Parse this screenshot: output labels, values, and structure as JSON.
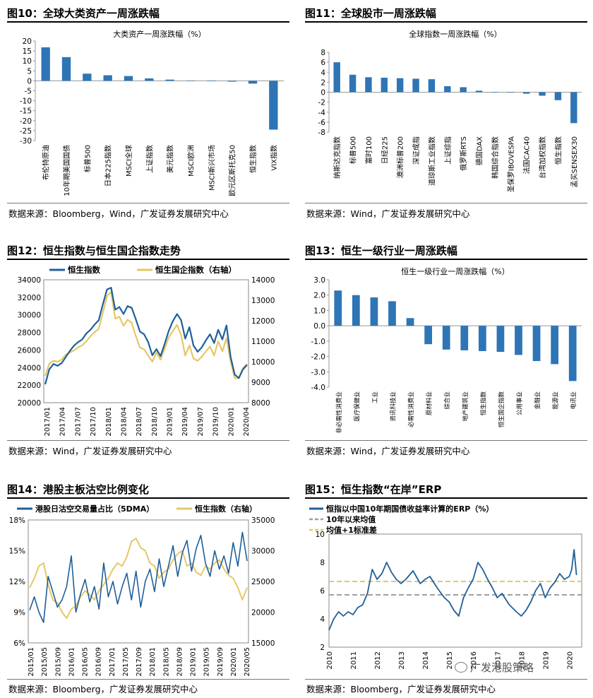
{
  "colors": {
    "blue": "#1F5F99",
    "bar": "#2E75B6",
    "gold": "#E6C766",
    "gray": "#A0A0A0"
  },
  "panels": [
    {
      "title": "图10：全球大类资产一周涨跌幅",
      "source": "数据来源：Bloomberg，Wind，广发证券发展研究中心"
    },
    {
      "title": "图11：全球股市一周涨跌幅",
      "source": "数据来源：Wind，广发证券发展研究中心"
    },
    {
      "title": "图12：恒生指数与恒生国企指数走势",
      "source": "数据来源：Wind，广发证券发展研究中心"
    },
    {
      "title": "图13：恒生一级行业一周涨跌幅",
      "source": "数据来源：Wind，广发证券发展研究中心"
    },
    {
      "title": "图14：港股主板沽空比例变化",
      "source": "数据来源：Bloomberg，广发证券发展研究中心"
    },
    {
      "title": "图15：恒生指数“在岸”ERP",
      "source": "数据来源：Bloomberg，广发证券发展研究中心"
    }
  ],
  "watermark": "广发港股策略",
  "chart_data": [
    {
      "type": "bar",
      "title": "大类资产一周涨跌幅（%）",
      "categories": [
        "布伦特原油",
        "10年期美国国债",
        "标普500",
        "日本225指数",
        "MSCI全球",
        "上证指数",
        "美元指数",
        "MSCI欧洲",
        "MSCI新兴市场",
        "欧元区斯托克50",
        "恒生指数",
        "VIX指数"
      ],
      "values": [
        16.8,
        11.9,
        3.6,
        2.8,
        2.4,
        1.2,
        0.6,
        0.1,
        -0.2,
        -0.4,
        -1.4,
        -24.5
      ],
      "ylim": [
        -30,
        20
      ],
      "yticks": [
        20,
        15,
        10,
        5,
        0,
        -5,
        -10,
        -15,
        -20,
        -25,
        -30
      ]
    },
    {
      "type": "bar",
      "title": "全球指数一周涨跌幅（%）",
      "categories": [
        "纳斯达克指数",
        "标普500",
        "富时100",
        "日经225",
        "澳洲标普200",
        "深证成指",
        "道琼斯工业指数",
        "上证综指",
        "俄罗斯RTS",
        "德国DAX",
        "韩国综合指数",
        "圣保罗IBOVESPA",
        "法国CAC40",
        "台湾加权指数",
        "恒生指数",
        "孟买SENSEX30"
      ],
      "values": [
        6.0,
        3.5,
        3.0,
        2.9,
        2.8,
        2.7,
        2.6,
        1.2,
        1.0,
        0.3,
        0.0,
        -0.1,
        -0.3,
        -0.7,
        -1.6,
        -6.2
      ],
      "ylim": [
        -8,
        8
      ],
      "yticks": [
        8,
        6,
        4,
        2,
        0,
        -2,
        -4,
        -6,
        -8
      ]
    },
    {
      "type": "line",
      "title": "",
      "series": [
        {
          "name": "恒生指数",
          "axis": "left"
        },
        {
          "name": "恒生国企指数（右轴）",
          "axis": "right"
        }
      ],
      "x": [
        "2017/01",
        "2017/04",
        "2017/07",
        "2017/10",
        "2018/01",
        "2018/04",
        "2018/07",
        "2018/10",
        "2019/01",
        "2019/04",
        "2019/07",
        "2019/10",
        "2020/01",
        "2020/04"
      ],
      "left_ylim": [
        20000,
        34000
      ],
      "left_yticks": [
        34000,
        32000,
        30000,
        28000,
        26000,
        24000,
        22000,
        20000
      ],
      "right_ylim": [
        8000,
        14000
      ],
      "right_yticks": [
        14000,
        13000,
        12000,
        11000,
        10000,
        9000,
        8000
      ],
      "hsi_points": [
        [
          0,
          22100
        ],
        [
          1,
          23800
        ],
        [
          2,
          24400
        ],
        [
          3,
          24200
        ],
        [
          4,
          24500
        ],
        [
          5,
          25200
        ],
        [
          6,
          25900
        ],
        [
          7,
          26500
        ],
        [
          8,
          26900
        ],
        [
          9,
          27200
        ],
        [
          10,
          27900
        ],
        [
          11,
          28300
        ],
        [
          12,
          28900
        ],
        [
          13,
          29400
        ],
        [
          14,
          31200
        ],
        [
          15,
          32900
        ],
        [
          16,
          33100
        ],
        [
          17,
          30600
        ],
        [
          18,
          30900
        ],
        [
          19,
          30100
        ],
        [
          20,
          31000
        ],
        [
          21,
          30800
        ],
        [
          22,
          29500
        ],
        [
          23,
          28100
        ],
        [
          24,
          27800
        ],
        [
          25,
          26900
        ],
        [
          26,
          25400
        ],
        [
          27,
          26100
        ],
        [
          28,
          25300
        ],
        [
          29,
          26700
        ],
        [
          30,
          28200
        ],
        [
          31,
          29300
        ],
        [
          32,
          30100
        ],
        [
          33,
          29400
        ],
        [
          34,
          27300
        ],
        [
          35,
          28600
        ],
        [
          36,
          26500
        ],
        [
          37,
          25800
        ],
        [
          38,
          26300
        ],
        [
          39,
          27100
        ],
        [
          40,
          27800
        ],
        [
          41,
          26800
        ],
        [
          42,
          28300
        ],
        [
          43,
          27200
        ],
        [
          44,
          28800
        ],
        [
          45,
          25200
        ],
        [
          46,
          23200
        ],
        [
          47,
          22800
        ],
        [
          48,
          23800
        ],
        [
          49,
          24300
        ]
      ],
      "hscei_points": [
        [
          0,
          9300
        ],
        [
          1,
          9900
        ],
        [
          2,
          10050
        ],
        [
          3,
          10000
        ],
        [
          4,
          10100
        ],
        [
          5,
          10350
        ],
        [
          6,
          10450
        ],
        [
          7,
          10550
        ],
        [
          8,
          10700
        ],
        [
          9,
          10800
        ],
        [
          10,
          11000
        ],
        [
          11,
          11250
        ],
        [
          12,
          11450
        ],
        [
          13,
          11600
        ],
        [
          14,
          12400
        ],
        [
          15,
          13200
        ],
        [
          16,
          13400
        ],
        [
          17,
          12100
        ],
        [
          18,
          12200
        ],
        [
          19,
          11750
        ],
        [
          20,
          12050
        ],
        [
          21,
          11900
        ],
        [
          22,
          11250
        ],
        [
          23,
          10700
        ],
        [
          24,
          10600
        ],
        [
          25,
          10300
        ],
        [
          26,
          10000
        ],
        [
          27,
          10450
        ],
        [
          28,
          10100
        ],
        [
          29,
          10650
        ],
        [
          30,
          11200
        ],
        [
          31,
          11500
        ],
        [
          32,
          11800
        ],
        [
          33,
          11300
        ],
        [
          34,
          10300
        ],
        [
          35,
          10800
        ],
        [
          36,
          10150
        ],
        [
          37,
          10050
        ],
        [
          38,
          10250
        ],
        [
          39,
          10500
        ],
        [
          40,
          10750
        ],
        [
          41,
          10300
        ],
        [
          42,
          11000
        ],
        [
          43,
          10500
        ],
        [
          44,
          11150
        ],
        [
          45,
          10000
        ],
        [
          46,
          9200
        ],
        [
          47,
          9200
        ],
        [
          48,
          9700
        ],
        [
          49,
          9900
        ]
      ]
    },
    {
      "type": "bar",
      "title": "恒生一级行业一周涨跌幅（%）",
      "categories": [
        "非必需性消费业",
        "医疗保健业",
        "工业",
        "资讯科技业",
        "必需性消费业",
        "原材料业",
        "综合业",
        "地产建筑业",
        "恒生指数",
        "恒生国企指数",
        "公用事业",
        "金融业",
        "能源业",
        "电讯业"
      ],
      "values": [
        2.3,
        2.0,
        1.85,
        1.6,
        0.5,
        -1.2,
        -1.55,
        -1.6,
        -1.65,
        -1.7,
        -1.9,
        -2.3,
        -2.5,
        -3.6
      ],
      "ylim": [
        -4,
        3
      ],
      "yticks": [
        3.0,
        2.0,
        1.0,
        0.0,
        -1.0,
        -2.0,
        -3.0,
        -4.0
      ]
    },
    {
      "type": "line",
      "title": "",
      "series": [
        {
          "name": "港股日沽空交易量占比（5DMA）",
          "axis": "left"
        },
        {
          "name": "恒生指数（右轴）",
          "axis": "right"
        }
      ],
      "x": [
        "2015/01",
        "2015/05",
        "2015/09",
        "2016/01",
        "2016/05",
        "2016/09",
        "2017/01",
        "2017/05",
        "2017/09",
        "2018/01",
        "2018/05",
        "2018/09",
        "2019/01",
        "2019/05",
        "2019/09",
        "2020/01",
        "2020/05"
      ],
      "left_ylim": [
        6,
        18
      ],
      "left_yticks": [
        "18%",
        "15%",
        "12%",
        "9%",
        "6%"
      ],
      "right_ylim": [
        15000,
        35000
      ],
      "right_yticks": [
        35000,
        30000,
        25000,
        20000,
        15000
      ],
      "short_points": [
        [
          0,
          9.2
        ],
        [
          1,
          10.5
        ],
        [
          2,
          9.0
        ],
        [
          3,
          8.0
        ],
        [
          4,
          12.5
        ],
        [
          5,
          11.0
        ],
        [
          6,
          9.5
        ],
        [
          7,
          10.2
        ],
        [
          8,
          11.5
        ],
        [
          9,
          14.5
        ],
        [
          10,
          9.0
        ],
        [
          11,
          10.8
        ],
        [
          12,
          12.2
        ],
        [
          13,
          10.0
        ],
        [
          14,
          11.5
        ],
        [
          15,
          9.3
        ],
        [
          16,
          13.8
        ],
        [
          17,
          10.5
        ],
        [
          18,
          12.0
        ],
        [
          19,
          9.8
        ],
        [
          20,
          11.5
        ],
        [
          21,
          12.8
        ],
        [
          22,
          10.2
        ],
        [
          23,
          13.0
        ],
        [
          24,
          9.5
        ],
        [
          25,
          12.0
        ],
        [
          26,
          13.2
        ],
        [
          27,
          11.0
        ],
        [
          28,
          14.2
        ],
        [
          29,
          11.5
        ],
        [
          30,
          13.5
        ],
        [
          31,
          15.5
        ],
        [
          32,
          12.5
        ],
        [
          33,
          14.8
        ],
        [
          34,
          16.0
        ],
        [
          35,
          13.0
        ],
        [
          36,
          15.2
        ],
        [
          37,
          16.5
        ],
        [
          38,
          13.8
        ],
        [
          39,
          12.5
        ],
        [
          40,
          15.0
        ],
        [
          41,
          13.2
        ],
        [
          42,
          14.5
        ],
        [
          43,
          12.8
        ],
        [
          44,
          15.8
        ],
        [
          45,
          13.5
        ],
        [
          46,
          16.8
        ],
        [
          47,
          14.0
        ]
      ],
      "hsi_points": [
        [
          0,
          24000
        ],
        [
          1,
          25500
        ],
        [
          2,
          27500
        ],
        [
          3,
          28000
        ],
        [
          4,
          24500
        ],
        [
          5,
          22000
        ],
        [
          6,
          21500
        ],
        [
          7,
          20000
        ],
        [
          8,
          19000
        ],
        [
          9,
          20500
        ],
        [
          10,
          21000
        ],
        [
          11,
          22500
        ],
        [
          12,
          23500
        ],
        [
          13,
          22800
        ],
        [
          14,
          22000
        ],
        [
          15,
          23500
        ],
        [
          16,
          24500
        ],
        [
          17,
          25500
        ],
        [
          18,
          27000
        ],
        [
          19,
          28000
        ],
        [
          20,
          27500
        ],
        [
          21,
          29000
        ],
        [
          22,
          31500
        ],
        [
          23,
          32000
        ],
        [
          24,
          30500
        ],
        [
          25,
          30000
        ],
        [
          26,
          28000
        ],
        [
          27,
          27500
        ],
        [
          28,
          25500
        ],
        [
          29,
          26500
        ],
        [
          30,
          27000
        ],
        [
          31,
          28500
        ],
        [
          32,
          29500
        ],
        [
          33,
          30000
        ],
        [
          34,
          27500
        ],
        [
          35,
          28000
        ],
        [
          36,
          26500
        ],
        [
          37,
          26000
        ],
        [
          38,
          27500
        ],
        [
          39,
          27000
        ],
        [
          40,
          28000
        ],
        [
          41,
          28500
        ],
        [
          42,
          27000
        ],
        [
          43,
          26000
        ],
        [
          44,
          25500
        ],
        [
          45,
          24000
        ],
        [
          46,
          22000
        ],
        [
          47,
          24000
        ]
      ]
    },
    {
      "type": "line",
      "title": "",
      "series": [
        {
          "name": "恒指以中国10年期国债收益率计算的ERP（%）"
        },
        {
          "name": "10年以来均值"
        },
        {
          "name": "均值+1标准差"
        }
      ],
      "x": [
        "2010",
        "2011",
        "2012",
        "2013",
        "2014",
        "2015",
        "2016",
        "2017",
        "2018",
        "2019",
        "2020"
      ],
      "ylim": [
        2,
        10
      ],
      "yticks": [
        10,
        8,
        6,
        4,
        2
      ],
      "mean": 5.7,
      "mean_plus_1sd": 6.65,
      "erp_points": [
        [
          2010.0,
          3.2
        ],
        [
          2010.2,
          4.0
        ],
        [
          2010.4,
          4.5
        ],
        [
          2010.6,
          4.2
        ],
        [
          2010.8,
          4.5
        ],
        [
          2011.0,
          4.3
        ],
        [
          2011.2,
          4.8
        ],
        [
          2011.4,
          5.0
        ],
        [
          2011.6,
          5.8
        ],
        [
          2011.8,
          7.5
        ],
        [
          2012.0,
          6.8
        ],
        [
          2012.2,
          7.2
        ],
        [
          2012.4,
          8.0
        ],
        [
          2012.6,
          7.3
        ],
        [
          2012.8,
          6.8
        ],
        [
          2013.0,
          6.5
        ],
        [
          2013.2,
          6.8
        ],
        [
          2013.5,
          7.4
        ],
        [
          2013.8,
          6.5
        ],
        [
          2014.0,
          6.8
        ],
        [
          2014.2,
          7.0
        ],
        [
          2014.5,
          6.2
        ],
        [
          2014.8,
          5.5
        ],
        [
          2015.0,
          5.2
        ],
        [
          2015.2,
          4.6
        ],
        [
          2015.4,
          4.2
        ],
        [
          2015.6,
          5.5
        ],
        [
          2015.8,
          6.2
        ],
        [
          2016.0,
          6.8
        ],
        [
          2016.2,
          8.0
        ],
        [
          2016.4,
          7.5
        ],
        [
          2016.6,
          6.8
        ],
        [
          2016.8,
          6.2
        ],
        [
          2017.0,
          5.5
        ],
        [
          2017.2,
          5.8
        ],
        [
          2017.5,
          5.0
        ],
        [
          2017.8,
          4.5
        ],
        [
          2018.0,
          4.2
        ],
        [
          2018.2,
          4.6
        ],
        [
          2018.4,
          5.2
        ],
        [
          2018.6,
          6.0
        ],
        [
          2018.8,
          6.5
        ],
        [
          2019.0,
          5.5
        ],
        [
          2019.2,
          6.2
        ],
        [
          2019.4,
          6.6
        ],
        [
          2019.6,
          7.2
        ],
        [
          2019.8,
          6.8
        ],
        [
          2020.0,
          7.0
        ],
        [
          2020.1,
          7.5
        ],
        [
          2020.2,
          8.9
        ],
        [
          2020.3,
          7.1
        ]
      ]
    }
  ]
}
